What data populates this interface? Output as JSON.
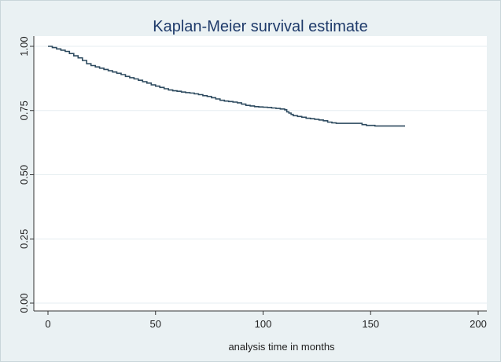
{
  "chart_data": {
    "type": "line",
    "title": "Kaplan-Meier survival estimate",
    "xlabel": "analysis time in months",
    "ylabel": "",
    "xlim": [
      0,
      200
    ],
    "ylim": [
      0,
      1
    ],
    "xticks": [
      0,
      50,
      100,
      150,
      200
    ],
    "xtick_labels": [
      "0",
      "50",
      "100",
      "150",
      "200"
    ],
    "yticks": [
      0,
      0.25,
      0.5,
      0.75,
      1
    ],
    "ytick_labels": [
      "0.00",
      "0.25",
      "0.50",
      "0.75",
      "1.00"
    ],
    "grid": true,
    "series": [
      {
        "name": "Kaplan-Meier survival estimate",
        "color": "#2d4a5f",
        "step": true,
        "x": [
          0,
          2,
          4,
          6,
          8,
          10,
          12,
          14,
          16,
          18,
          20,
          22,
          24,
          26,
          28,
          30,
          32,
          34,
          36,
          38,
          40,
          42,
          44,
          46,
          48,
          50,
          52,
          54,
          56,
          58,
          60,
          62,
          64,
          66,
          68,
          70,
          72,
          74,
          76,
          78,
          80,
          82,
          84,
          86,
          88,
          90,
          92,
          94,
          96,
          98,
          100,
          102,
          104,
          106,
          108,
          110,
          111,
          112,
          113,
          114,
          116,
          118,
          120,
          122,
          124,
          126,
          128,
          130,
          132,
          134,
          136,
          140,
          144,
          146,
          148,
          152,
          156,
          160,
          166
        ],
        "y": [
          1.0,
          0.995,
          0.99,
          0.985,
          0.98,
          0.972,
          0.963,
          0.955,
          0.945,
          0.932,
          0.925,
          0.92,
          0.915,
          0.91,
          0.905,
          0.9,
          0.895,
          0.89,
          0.883,
          0.878,
          0.873,
          0.868,
          0.862,
          0.857,
          0.85,
          0.845,
          0.84,
          0.835,
          0.83,
          0.827,
          0.825,
          0.822,
          0.82,
          0.818,
          0.815,
          0.812,
          0.808,
          0.805,
          0.8,
          0.795,
          0.79,
          0.787,
          0.785,
          0.783,
          0.78,
          0.775,
          0.77,
          0.768,
          0.765,
          0.764,
          0.763,
          0.762,
          0.76,
          0.758,
          0.756,
          0.753,
          0.745,
          0.74,
          0.735,
          0.73,
          0.727,
          0.724,
          0.72,
          0.718,
          0.716,
          0.713,
          0.71,
          0.705,
          0.702,
          0.7,
          0.7,
          0.7,
          0.7,
          0.695,
          0.692,
          0.69,
          0.69,
          0.69,
          0.69
        ]
      }
    ]
  }
}
